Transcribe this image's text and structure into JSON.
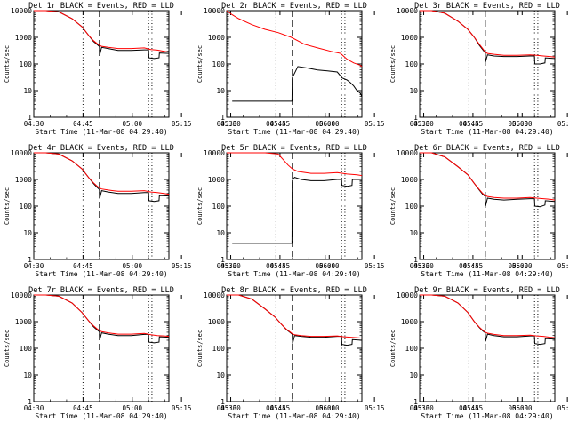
{
  "page": {
    "background": "#ffffff",
    "axis_color": "#000000"
  },
  "panel_titles": [
    "Det 1r BLACK = Events, RED = LLD",
    "Det 2r BLACK = Events, RED = LLD",
    "Det 3r BLACK = Events, RED = LLD",
    "Det 4r BLACK = Events, RED = LLD",
    "Det 5r BLACK = Events, RED = LLD",
    "Det 6r BLACK = Events, RED = LLD",
    "Det 7r BLACK = Events, RED = LLD",
    "Det 8r BLACK = Events, RED = LLD",
    "Det 9r BLACK = Events, RED = LLD"
  ],
  "chart_data": {
    "type": "line",
    "panel_count": 9,
    "xlabel": "Start Time (11-Mar-08 04:29:40)",
    "ylabel": "Counts/sec",
    "xticks": [
      "04:30",
      "04:45",
      "05:00",
      "05:15",
      "05:30",
      "05:45",
      "06:00"
    ],
    "xlim_minutes": [
      0.33,
      41.5
    ],
    "yscale": "log",
    "ylim": [
      1,
      10000
    ],
    "yticks": [
      "1",
      "10",
      "100",
      "1000",
      "10000"
    ],
    "series_colors": {
      "Events": "#000000",
      "LLD": "#ff0000"
    },
    "dotted_vlines_minutes": [
      15.33,
      35.33,
      36.33
    ],
    "dashed_vline_minutes": 20.33,
    "series": [
      {
        "panel": "Det 1r",
        "events": {
          "x": [
            0.33,
            4,
            8,
            12,
            15,
            17,
            18.5,
            19.5,
            20.33,
            20.4,
            21,
            23,
            26,
            30,
            34,
            35.3,
            35.4,
            37,
            38.5,
            38.6,
            41.5
          ],
          "y": [
            10000,
            10000,
            9000,
            5000,
            2500,
            1200,
            700,
            550,
            450,
            210,
            420,
            380,
            320,
            320,
            340,
            340,
            170,
            160,
            170,
            260,
            250
          ]
        },
        "lld": {
          "x": [
            0.33,
            4,
            8,
            12,
            15,
            17,
            18.5,
            19.5,
            20.33,
            21,
            23,
            26,
            30,
            34,
            36,
            38,
            40,
            41.5
          ],
          "y": [
            10000,
            10000,
            9000,
            5000,
            2500,
            1200,
            750,
            600,
            500,
            460,
            420,
            380,
            380,
            400,
            350,
            330,
            300,
            280
          ]
        }
      },
      {
        "panel": "Det 2r",
        "events": {
          "x": [
            2,
            20.2,
            20.3,
            22,
            25,
            28,
            31,
            34,
            35.5,
            37,
            38,
            39,
            40,
            41,
            41.5
          ],
          "y": [
            4,
            4,
            30,
            80,
            70,
            60,
            55,
            50,
            30,
            25,
            20,
            15,
            10,
            8,
            6
          ]
        },
        "lld": {
          "x": [
            0.33,
            2,
            4,
            8,
            12,
            16,
            20,
            24,
            28,
            32,
            35,
            37,
            39,
            41,
            41.5
          ],
          "y": [
            10000,
            7000,
            5000,
            3000,
            2000,
            1500,
            1000,
            550,
            400,
            300,
            250,
            150,
            110,
            90,
            80
          ]
        }
      },
      {
        "panel": "Det 3r",
        "events": {
          "x": [
            0.33,
            4,
            8,
            12,
            15,
            17,
            18.5,
            19.5,
            20.33,
            20.4,
            21,
            23,
            26,
            30,
            34,
            35.3,
            35.4,
            37,
            38.5,
            38.6,
            41.5
          ],
          "y": [
            10000,
            10000,
            8000,
            4000,
            2000,
            1000,
            500,
            350,
            260,
            120,
            220,
            200,
            190,
            190,
            200,
            200,
            100,
            100,
            110,
            170,
            160
          ]
        },
        "lld": {
          "x": [
            0.33,
            4,
            8,
            12,
            15,
            17,
            18.5,
            19.5,
            20.33,
            21,
            23,
            26,
            30,
            34,
            36,
            38,
            40,
            41.5
          ],
          "y": [
            10000,
            10000,
            8000,
            4000,
            2000,
            1000,
            550,
            380,
            280,
            250,
            230,
            210,
            210,
            220,
            210,
            200,
            190,
            180
          ]
        }
      },
      {
        "panel": "Det 4r",
        "events": {
          "x": [
            0.33,
            4,
            8,
            12,
            15,
            17,
            18.5,
            19.5,
            20.33,
            20.4,
            21,
            23,
            26,
            30,
            34,
            35.3,
            35.4,
            37,
            38.5,
            38.6,
            41.5
          ],
          "y": [
            10000,
            10000,
            9000,
            5000,
            2500,
            1200,
            700,
            520,
            420,
            190,
            380,
            340,
            300,
            300,
            320,
            320,
            160,
            150,
            160,
            250,
            240
          ]
        },
        "lld": {
          "x": [
            0.33,
            4,
            8,
            12,
            15,
            17,
            18.5,
            19.5,
            20.33,
            21,
            23,
            26,
            30,
            34,
            36,
            38,
            40,
            41.5
          ],
          "y": [
            10000,
            10000,
            9000,
            5000,
            2500,
            1200,
            750,
            580,
            480,
            440,
            400,
            360,
            360,
            380,
            340,
            320,
            300,
            280
          ]
        }
      },
      {
        "panel": "Det 5r",
        "events": {
          "x": [
            2,
            20.2,
            20.3,
            21,
            23,
            26,
            30,
            34,
            35.3,
            35.4,
            37,
            38.5,
            38.6,
            41.5
          ],
          "y": [
            4,
            4,
            900,
            1200,
            1000,
            900,
            900,
            1000,
            1000,
            600,
            550,
            600,
            1000,
            1000
          ]
        },
        "lld": {
          "x": [
            0.33,
            2,
            4,
            8,
            12,
            16,
            19,
            20.33,
            22,
            26,
            30,
            34,
            37,
            40,
            41.5
          ],
          "y": [
            10000,
            10000,
            10000,
            10000,
            10000,
            9000,
            3500,
            2500,
            2000,
            1700,
            1700,
            1800,
            1600,
            1500,
            1400
          ]
        }
      },
      {
        "panel": "Det 6r",
        "events": {
          "x": [
            0.33,
            4,
            8,
            12,
            15,
            17,
            18.5,
            19.5,
            20.33,
            20.4,
            21,
            23,
            26,
            30,
            34,
            35.3,
            35.4,
            37,
            38.5,
            38.6,
            41.5
          ],
          "y": [
            10000,
            10000,
            7000,
            3000,
            1500,
            700,
            400,
            280,
            230,
            100,
            200,
            180,
            170,
            180,
            190,
            190,
            100,
            95,
            110,
            160,
            150
          ]
        },
        "lld": {
          "x": [
            0.33,
            4,
            8,
            12,
            15,
            17,
            18.5,
            19.5,
            20.33,
            21,
            23,
            26,
            30,
            34,
            36,
            38,
            40,
            41.5
          ],
          "y": [
            10000,
            10000,
            7000,
            3000,
            1500,
            700,
            420,
            300,
            250,
            230,
            210,
            200,
            200,
            210,
            200,
            190,
            180,
            170
          ]
        }
      },
      {
        "panel": "Det 7r",
        "events": {
          "x": [
            0.33,
            4,
            8,
            12,
            15,
            17,
            18.5,
            19.5,
            20.33,
            20.4,
            21,
            23,
            26,
            30,
            34,
            35.3,
            35.4,
            37,
            38.5,
            38.6,
            41.5
          ],
          "y": [
            10000,
            10000,
            9000,
            5000,
            2200,
            1100,
            650,
            500,
            420,
            200,
            380,
            340,
            300,
            300,
            330,
            330,
            170,
            160,
            170,
            270,
            260
          ]
        },
        "lld": {
          "x": [
            0.33,
            4,
            8,
            12,
            15,
            17,
            18.5,
            19.5,
            20.33,
            21,
            23,
            26,
            30,
            34,
            36,
            38,
            40,
            41.5
          ],
          "y": [
            10000,
            10000,
            9000,
            5000,
            2200,
            1100,
            700,
            550,
            460,
            420,
            380,
            340,
            340,
            360,
            320,
            300,
            290,
            280
          ]
        }
      },
      {
        "panel": "Det 8r",
        "events": {
          "x": [
            0.33,
            4,
            8,
            12,
            15,
            17,
            18.5,
            19.5,
            20.33,
            20.4,
            21,
            23,
            26,
            30,
            34,
            35.3,
            35.4,
            37,
            38.5,
            38.6,
            41.5
          ],
          "y": [
            10000,
            10000,
            7000,
            3000,
            1500,
            800,
            500,
            400,
            330,
            150,
            300,
            280,
            260,
            260,
            280,
            280,
            140,
            130,
            140,
            210,
            200
          ]
        },
        "lld": {
          "x": [
            0.33,
            4,
            8,
            12,
            15,
            17,
            18.5,
            19.5,
            20.33,
            21,
            23,
            26,
            30,
            34,
            36,
            38,
            40,
            41.5
          ],
          "y": [
            10000,
            10000,
            7000,
            3000,
            1500,
            800,
            520,
            420,
            350,
            320,
            300,
            280,
            280,
            290,
            270,
            260,
            250,
            240
          ]
        }
      },
      {
        "panel": "Det 9r",
        "events": {
          "x": [
            0.33,
            4,
            8,
            12,
            15,
            17,
            18.5,
            19.5,
            20.33,
            20.4,
            21,
            23,
            26,
            30,
            34,
            35.3,
            35.4,
            37,
            38.5,
            38.6,
            41.5
          ],
          "y": [
            10000,
            10000,
            9000,
            5000,
            2200,
            1000,
            600,
            450,
            380,
            180,
            340,
            300,
            270,
            270,
            290,
            290,
            150,
            140,
            150,
            230,
            220
          ]
        },
        "lld": {
          "x": [
            0.33,
            4,
            8,
            12,
            15,
            17,
            18.5,
            19.5,
            20.33,
            21,
            23,
            26,
            30,
            34,
            36,
            38,
            40,
            41.5
          ],
          "y": [
            10000,
            10000,
            9000,
            5000,
            2200,
            1000,
            620,
            480,
            400,
            370,
            330,
            300,
            300,
            310,
            290,
            280,
            260,
            250
          ]
        }
      }
    ]
  }
}
